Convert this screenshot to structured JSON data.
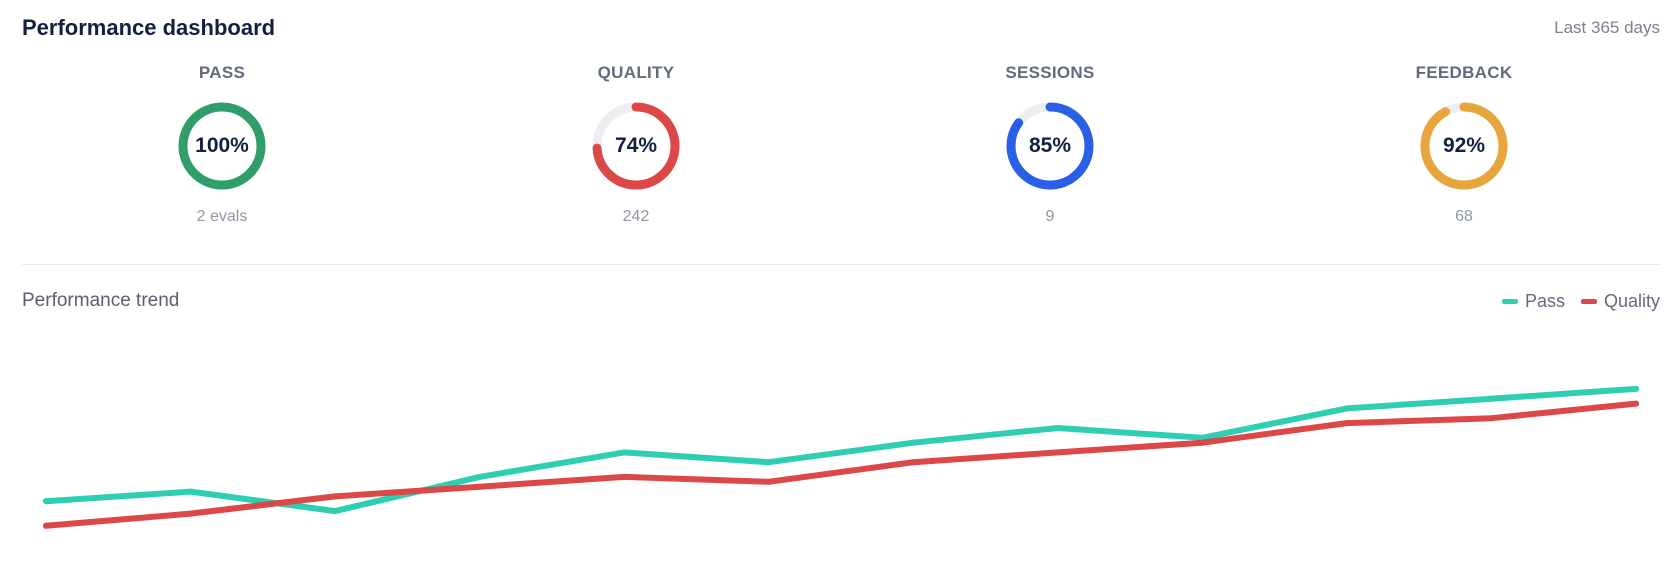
{
  "header": {
    "title": "Performance dashboard",
    "range_label": "Last 365 days"
  },
  "colors": {
    "pass": "#2ecfb0",
    "quality": "#dc4747",
    "green": "#2f9e6a",
    "blue": "#2a5fe8",
    "orange": "#e8a53c",
    "track": "#eceef2"
  },
  "metrics": [
    {
      "label": "PASS",
      "value_label": "100%",
      "percent": 100,
      "sub": "2 evals",
      "color": "#2f9e6a"
    },
    {
      "label": "QUALITY",
      "value_label": "74%",
      "percent": 74,
      "sub": "242",
      "color": "#dc4747"
    },
    {
      "label": "SESSIONS",
      "value_label": "85%",
      "percent": 85,
      "sub": "9",
      "color": "#2a5fe8"
    },
    {
      "label": "FEEDBACK",
      "value_label": "92%",
      "percent": 92,
      "sub": "68",
      "color": "#e8a53c"
    }
  ],
  "trend": {
    "title": "Performance trend"
  },
  "chart_data": {
    "type": "line",
    "x": [
      1,
      2,
      3,
      4,
      5,
      6,
      7,
      8,
      9,
      10,
      11,
      12
    ],
    "series": [
      {
        "name": "Pass",
        "color": "#2ecfb0",
        "values": [
          47,
          49,
          45,
          52,
          57,
          55,
          59,
          62,
          60,
          66,
          68,
          70
        ]
      },
      {
        "name": "Quality",
        "color": "#dc4747",
        "values": [
          42,
          44.5,
          48,
          50,
          52,
          51,
          55,
          57,
          59,
          63,
          64,
          67
        ]
      }
    ],
    "ylim": [
      35,
      80
    ],
    "grid": false,
    "legend": "top-right"
  }
}
